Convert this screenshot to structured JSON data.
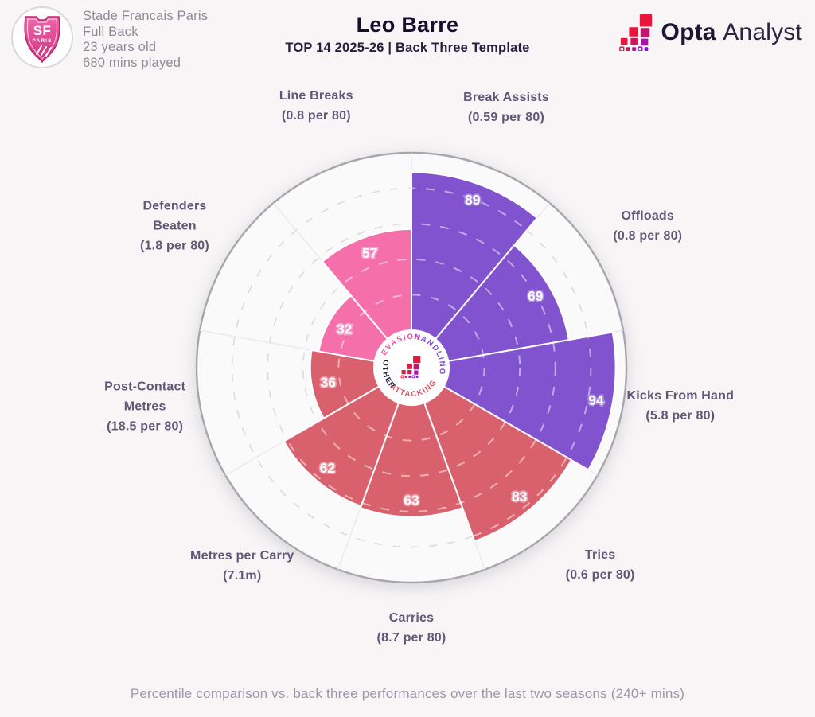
{
  "club_panel": {
    "club": "Stade Francais Paris",
    "position": "Full Back",
    "age": "23 years old",
    "minutes": "680 mins played",
    "badge": {
      "initials": "SF",
      "city": "PARIS"
    }
  },
  "header": {
    "title": "Leo Barre",
    "subtitle": "TOP 14 2025-26 | Back Three Template"
  },
  "brand": {
    "bold": "Opta",
    "light": "Analyst"
  },
  "footer": {
    "note": "Percentile comparison vs. back three performances over the last two seasons (240+ mins)"
  },
  "chart_data": {
    "type": "bar",
    "layout": "polar pizza chart, 9 equal 40-degree sectors clockwise from 12 o'clock, percentile radius scale",
    "rlim": [
      0,
      100
    ],
    "gridlines": [
      20,
      40,
      60,
      80,
      100
    ],
    "grid_style": "dashed concentric circles, solid outer ring",
    "legend_position": "center hub: category names arc around Opta mark",
    "group_colors": {
      "evasion": "#f56fab",
      "handling": "#8253cf",
      "attacking": "#d9616e",
      "other": "#28223f"
    },
    "value_halo_colors": {
      "evasion": "#fa9dc9",
      "handling": "#a687e2",
      "attacking": "#e89ba4"
    },
    "center_labels": [
      {
        "text": "EVASION",
        "color": "#f0509d"
      },
      {
        "text": "HANDLING",
        "color": "#8347d6"
      },
      {
        "text": "ATTACKING",
        "color": "#dd4f63"
      },
      {
        "text": "OTHER",
        "color": "#28223f"
      }
    ],
    "series": [
      {
        "name": "percentile",
        "values": [
          89,
          69,
          94,
          83,
          63,
          62,
          36,
          32,
          57
        ]
      }
    ],
    "sectors": [
      {
        "name": "Break Assists",
        "detail": "(0.59 per 80)",
        "value": 89,
        "group": "handling"
      },
      {
        "name": "Offloads",
        "detail": "(0.8 per 80)",
        "value": 69,
        "group": "handling"
      },
      {
        "name": "Kicks From Hand",
        "detail": "(5.8 per 80)",
        "value": 94,
        "group": "handling"
      },
      {
        "name": "Tries",
        "detail": "(0.6 per 80)",
        "value": 83,
        "group": "attacking"
      },
      {
        "name": "Carries",
        "detail": "(8.7 per 80)",
        "value": 63,
        "group": "attacking"
      },
      {
        "name": "Metres per Carry",
        "detail": "(7.1m)",
        "value": 62,
        "group": "attacking"
      },
      {
        "name": "Post-Contact Metres",
        "detail": "(18.5 per 80)",
        "value": 36,
        "group": "attacking",
        "wrap": [
          "Post-Contact",
          "Metres"
        ]
      },
      {
        "name": "Defenders Beaten",
        "detail": "(1.8 per 80)",
        "value": 32,
        "group": "evasion",
        "wrap": [
          "Defenders",
          "Beaten"
        ]
      },
      {
        "name": "Line Breaks",
        "detail": "(0.8 per 80)",
        "value": 57,
        "group": "evasion"
      }
    ]
  }
}
